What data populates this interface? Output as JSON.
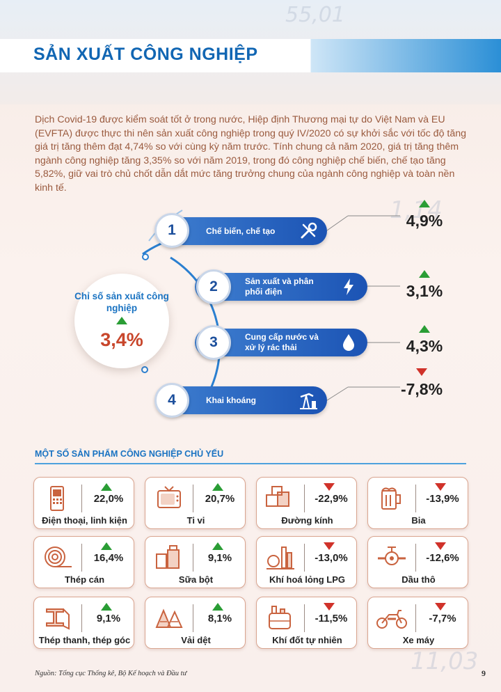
{
  "page": {
    "title": "SẢN XUẤT CÔNG NGHIỆP",
    "intro": "Dịch Covid-19 được kiểm soát tốt ở trong nước, Hiệp định Thương mại tự do Việt Nam và EU (EVFTA) được thực thi nên sản xuất công nghiệp trong quý IV/2020 có sự khởi sắc với tốc độ tăng giá trị tăng thêm đạt 4,74% so với cùng kỳ năm trước. Tính chung cả năm 2020, giá trị tăng thêm ngành công nghiệp tăng 3,35% so với năm 2019, trong đó công nghiệp chế biến, chế tạo tăng 5,82%, giữ vai trò chủ chốt dẫn dắt mức tăng trưởng chung của ngành công nghiệp và toàn nền kinh tế.",
    "background_numbers": [
      "55,01",
      "1,14",
      "11,03"
    ]
  },
  "index": {
    "label": "Chỉ số sản xuất công nghiệp",
    "value": "3,4%",
    "trend": "up",
    "items": [
      {
        "number": "1",
        "label": "Chế biến, chế tạo",
        "icon": "tools-icon",
        "value": "4,9%",
        "trend": "up"
      },
      {
        "number": "2",
        "label": "Sản xuất và phân phối điện",
        "icon": "lightning-icon",
        "value": "3,1%",
        "trend": "up"
      },
      {
        "number": "3",
        "label": "Cung cấp nước và xử lý rác thải",
        "icon": "water-drop-icon",
        "value": "4,3%",
        "trend": "up"
      },
      {
        "number": "4",
        "label": "Khai khoáng",
        "icon": "oil-pump-icon",
        "value": "-7,8%",
        "trend": "down"
      }
    ]
  },
  "products": {
    "heading": "MỘT SỐ SẢN PHẨM CÔNG NGHIỆP CHỦ YẾU",
    "items": [
      {
        "name": "Điện thoại, linh kiện",
        "value": "22,0%",
        "trend": "up",
        "icon": "phone-icon"
      },
      {
        "name": "Ti vi",
        "value": "20,7%",
        "trend": "up",
        "icon": "tv-icon"
      },
      {
        "name": "Đường kính",
        "value": "-22,9%",
        "trend": "down",
        "icon": "sugar-cubes-icon"
      },
      {
        "name": "Bia",
        "value": "-13,9%",
        "trend": "down",
        "icon": "beer-icon"
      },
      {
        "name": "Thép cán",
        "value": "16,4%",
        "trend": "up",
        "icon": "steel-coil-icon"
      },
      {
        "name": "Sữa bột",
        "value": "9,1%",
        "trend": "up",
        "icon": "milk-powder-icon"
      },
      {
        "name": "Khí hoá lỏng LPG",
        "value": "-13,0%",
        "trend": "down",
        "icon": "gas-plant-icon"
      },
      {
        "name": "Dầu thô",
        "value": "-12,6%",
        "trend": "down",
        "icon": "oil-valve-icon"
      },
      {
        "name": "Thép thanh, thép góc",
        "value": "9,1%",
        "trend": "up",
        "icon": "steel-beam-icon"
      },
      {
        "name": "Vải dệt",
        "value": "8,1%",
        "trend": "up",
        "icon": "fabric-icon"
      },
      {
        "name": "Khí đốt tự nhiên",
        "value": "-11,5%",
        "trend": "down",
        "icon": "gas-tank-icon"
      },
      {
        "name": "Xe máy",
        "value": "-7,7%",
        "trend": "down",
        "icon": "motorbike-icon"
      }
    ]
  },
  "footer": {
    "source": "Nguồn: Tổng cục Thống kê, Bộ Kế hoạch và Đầu tư",
    "page_number": "9"
  },
  "colors": {
    "title_blue": "#1166b3",
    "text_brown": "#9a5a3e",
    "pill_blue": "#1b53b4",
    "up_green": "#2a9d35",
    "down_red": "#d0322a",
    "icon_orange": "#c9633f"
  }
}
